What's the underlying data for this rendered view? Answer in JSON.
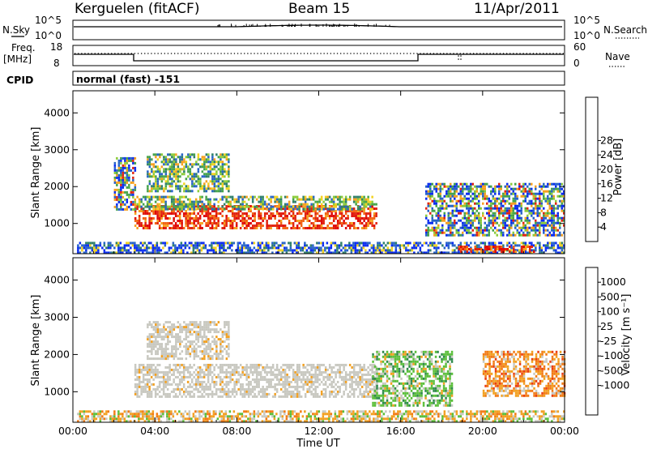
{
  "header": {
    "station": "Kerguelen (fitACF)",
    "beam": "Beam 15",
    "date": "11/Apr/2011"
  },
  "left_labels": {
    "nsky": "N.Sky",
    "freq_line1": "Freq.",
    "freq_line2": "[MHz]",
    "cpid": "CPID"
  },
  "right_labels": {
    "nsearch": "N.Search",
    "nave": "Nave"
  },
  "cpid_text": "normal (fast) -151",
  "strip_ticks": {
    "noise_top": "10^5",
    "noise_bottom": "10^0",
    "freq_top": "18",
    "freq_bottom": "8",
    "nave_top": "60",
    "nave_bottom": "0"
  },
  "chart_data": [
    {
      "type": "heatmap",
      "name": "power",
      "ylabel": "Slant Range [km]",
      "yticks": [
        "1000",
        "2000",
        "3000",
        "4000"
      ],
      "ylim": [
        180,
        4600
      ],
      "xlim_hours": [
        0,
        24
      ],
      "colorbar": {
        "label": "Power [dB]",
        "ticks": [
          "4",
          "8",
          "12",
          "16",
          "20",
          "24",
          "28"
        ],
        "colors": [
          "#0a2cf0",
          "#2864c8",
          "#30806a",
          "#46a44a",
          "#8ccc3a",
          "#f2d21e",
          "#f6a020",
          "#f26414",
          "#e22410",
          "#e00808"
        ]
      },
      "regions": [
        {
          "name": "main_band",
          "t0": 3.0,
          "t1": 14.8,
          "r0": 850,
          "r1": 1500,
          "level": "high"
        },
        {
          "name": "upper_band",
          "t0": 3.0,
          "t1": 14.8,
          "r0": 1400,
          "r1": 1750,
          "level": "medium"
        },
        {
          "name": "oblique_arc",
          "t0": 3.6,
          "t1": 7.6,
          "r0": 1900,
          "r1": 2900,
          "level": "medium"
        },
        {
          "name": "early_patch",
          "t0": 2.0,
          "t1": 3.0,
          "r0": 1400,
          "r1": 2800,
          "level": "mixed"
        },
        {
          "name": "near_range",
          "t0": 0.2,
          "t1": 24,
          "r0": 200,
          "r1": 500,
          "level": "low"
        },
        {
          "name": "late_evening",
          "t0": 17.2,
          "t1": 24,
          "r0": 700,
          "r1": 2100,
          "level": "mixed"
        },
        {
          "name": "ground_echo",
          "t0": 18.8,
          "t1": 22.5,
          "r0": 250,
          "r1": 400,
          "level": "high"
        }
      ]
    },
    {
      "type": "heatmap",
      "name": "velocity",
      "ylabel": "Slant Range [km]",
      "xlabel": "Time UT",
      "yticks": [
        "1000",
        "2000",
        "3000",
        "4000"
      ],
      "xticks": [
        "00:00",
        "04:00",
        "08:00",
        "12:00",
        "16:00",
        "20:00",
        "00:00"
      ],
      "ylim": [
        180,
        4600
      ],
      "xlim_hours": [
        0,
        24
      ],
      "colorbar": {
        "label": "Velocity [m s⁻¹]",
        "ticks": [
          "1000",
          "500",
          "100",
          "25",
          "-25",
          "-100",
          "-500",
          "-1000"
        ],
        "colors": [
          "#1c32c8",
          "#3c6ec8",
          "#2e8a4a",
          "#5abe3a",
          "#c8c8c0",
          "#c8c8c0",
          "#f2a020",
          "#f27a14",
          "#ea3c10",
          "#e00808"
        ]
      },
      "regions": [
        {
          "name": "main_band",
          "t0": 3.0,
          "t1": 14.8,
          "r0": 850,
          "r1": 1750,
          "level": "near-zero"
        },
        {
          "name": "oblique_arc",
          "t0": 3.6,
          "t1": 7.6,
          "r0": 1900,
          "r1": 2900,
          "level": "near-zero"
        },
        {
          "name": "green_streaks",
          "t0": 14.6,
          "t1": 18.5,
          "r0": 600,
          "r1": 2100,
          "level": "positive"
        },
        {
          "name": "evening_orange",
          "t0": 20.0,
          "t1": 24,
          "r0": 900,
          "r1": 2100,
          "level": "negative"
        },
        {
          "name": "near_range",
          "t0": 0.2,
          "t1": 24,
          "r0": 200,
          "r1": 500,
          "level": "mixed"
        }
      ]
    }
  ]
}
